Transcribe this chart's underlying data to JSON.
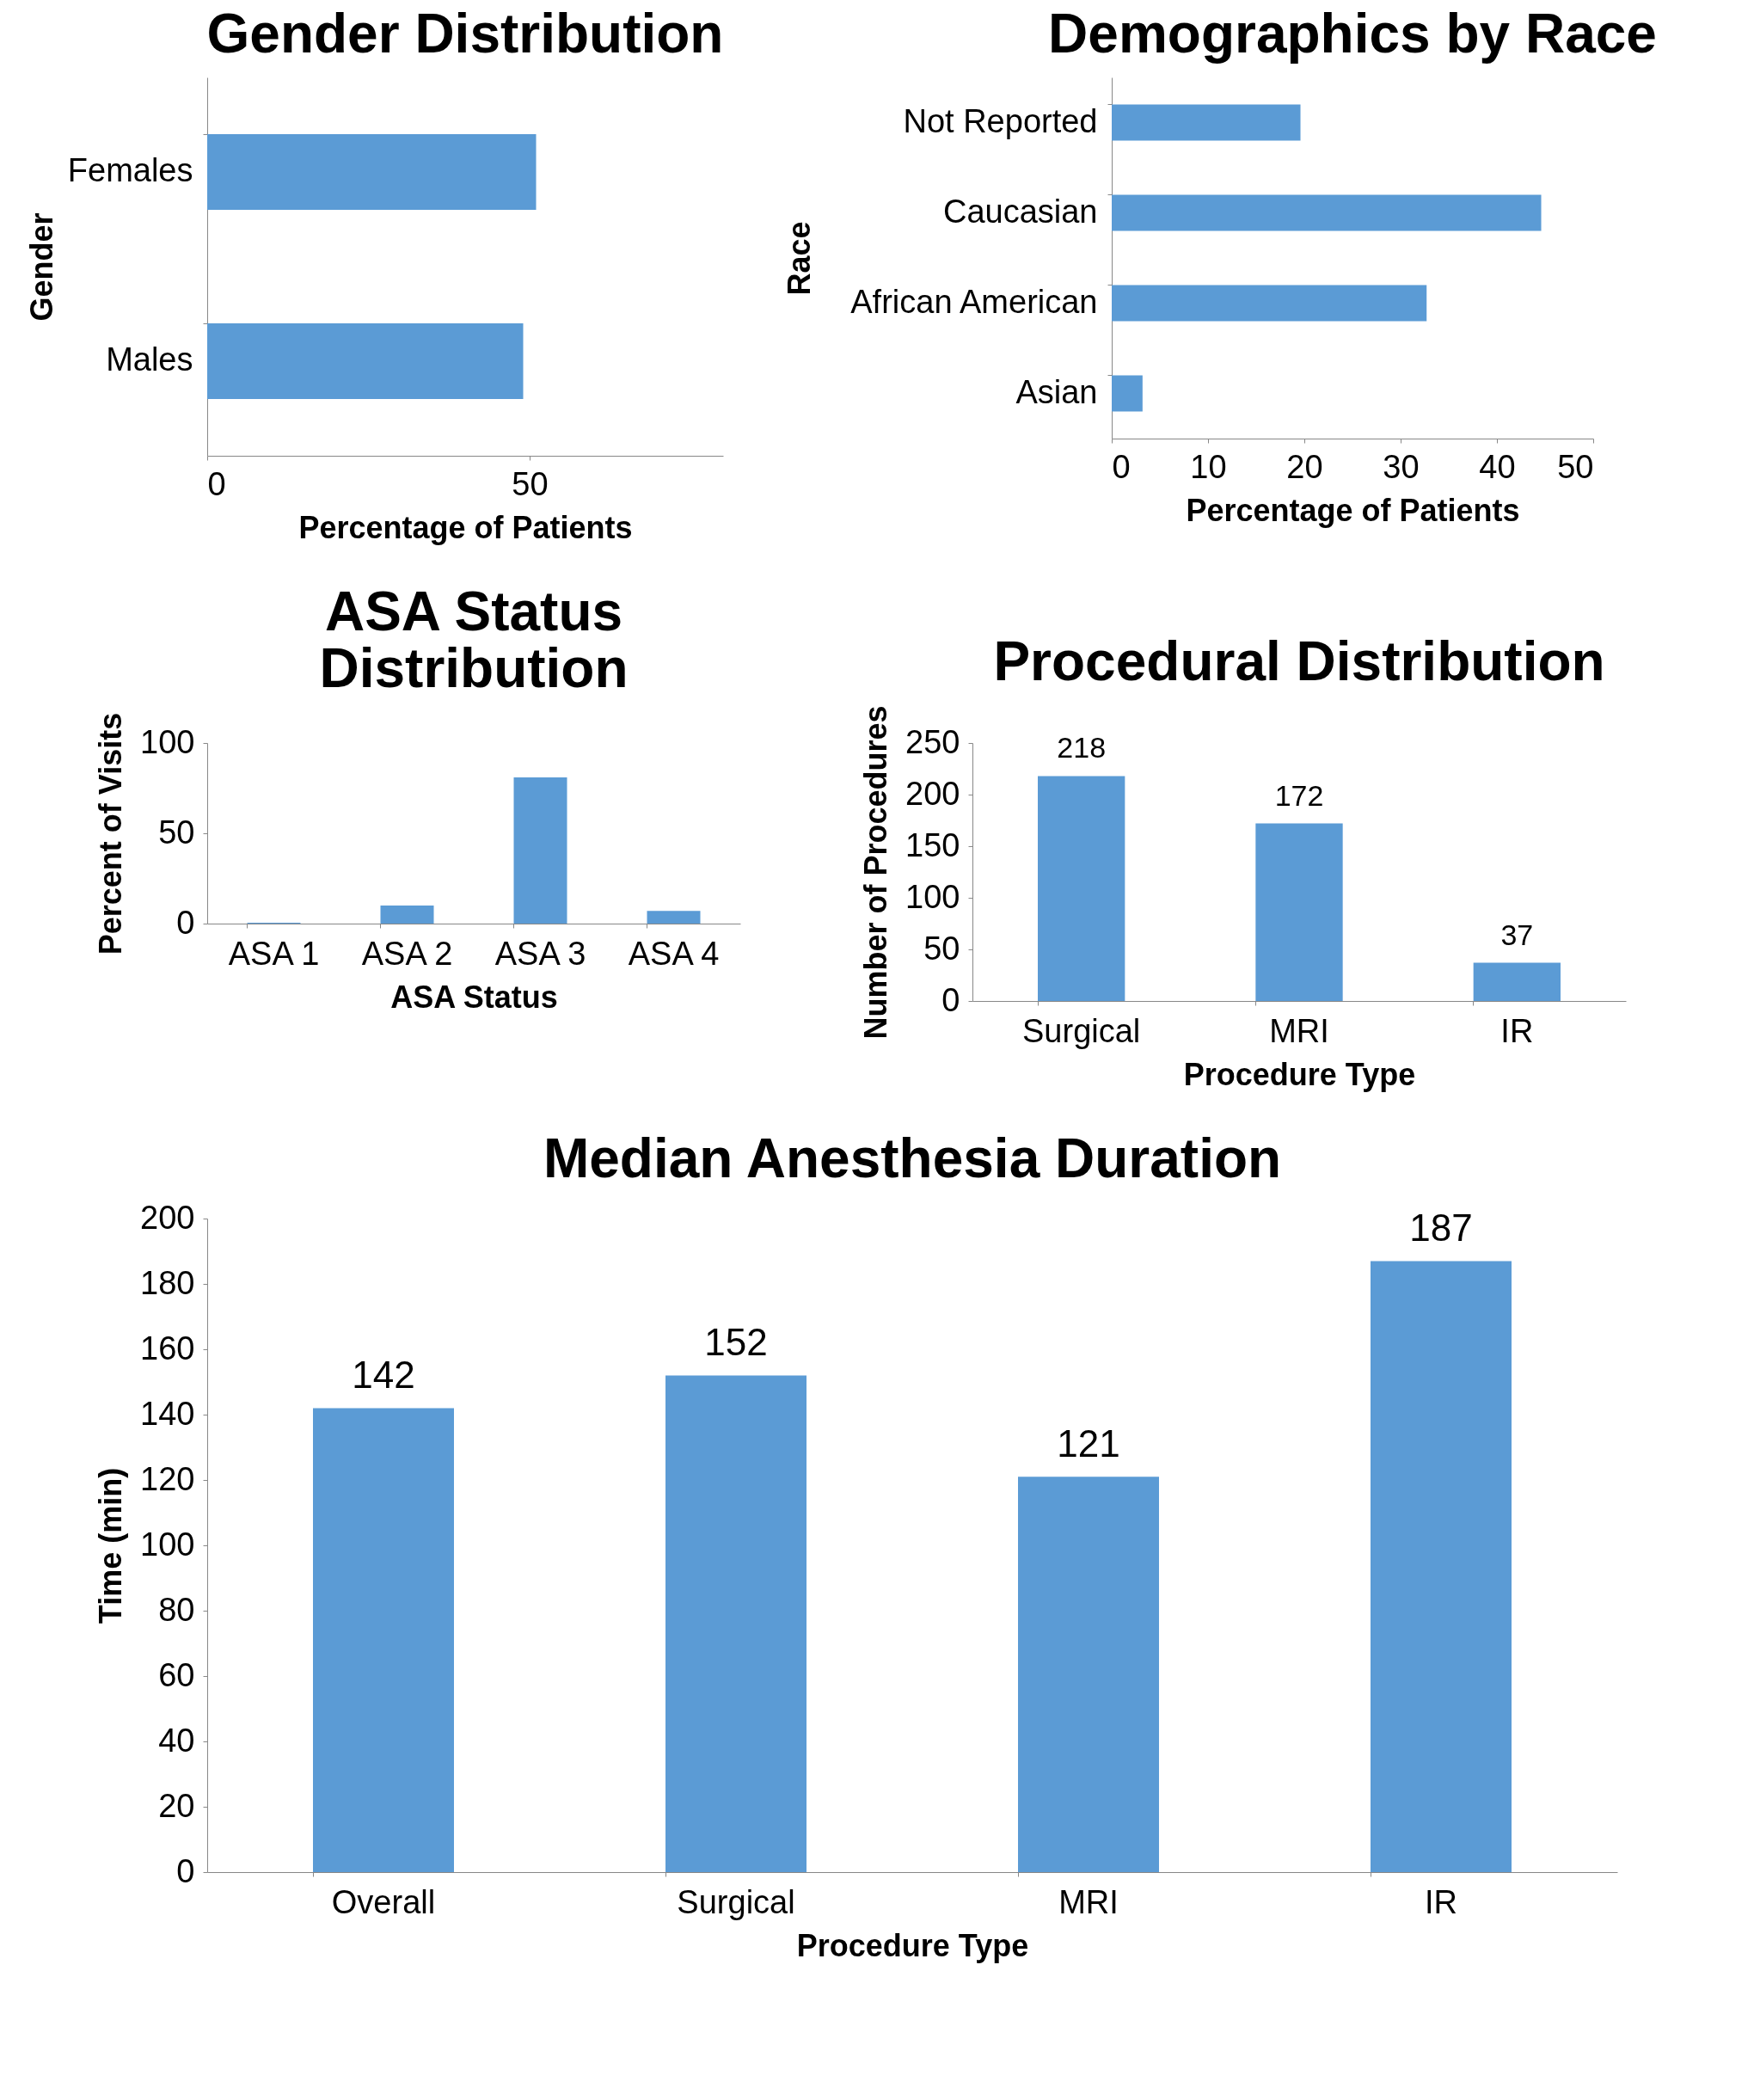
{
  "chart_data": [
    {
      "type": "bar",
      "orientation": "horizontal",
      "title": "Gender Distribution",
      "xlabel": "Percentage of Patients",
      "ylabel": "Gender",
      "categories": [
        "Females",
        "Males"
      ],
      "values": [
        51,
        49
      ],
      "color": "#5b9bd5",
      "xlim": [
        0,
        80
      ],
      "xticks": [
        0,
        50
      ]
    },
    {
      "type": "bar",
      "orientation": "horizontal",
      "title": "Demographics by Race",
      "xlabel": "Percentage of Patients",
      "ylabel": "Race",
      "categories": [
        "Not Reported",
        "Caucasian",
        "African American",
        "Asian"
      ],
      "values": [
        19.6,
        44.6,
        32.7,
        3.2
      ],
      "color": "#5b9bd5",
      "xlim": [
        0,
        50
      ],
      "xticks": [
        0,
        10,
        20,
        30,
        40,
        50
      ]
    },
    {
      "type": "bar",
      "title": "ASA Status Distribution",
      "xlabel": "ASA Status",
      "ylabel": "Percent of Visits",
      "categories": [
        "ASA 1",
        "ASA 2",
        "ASA 3",
        "ASA 4"
      ],
      "values": [
        0.5,
        10,
        81,
        7
      ],
      "color": "#5b9bd5",
      "ylim": [
        0,
        100
      ],
      "yticks": [
        0,
        50,
        100
      ]
    },
    {
      "type": "bar",
      "title": "Procedural Distribution",
      "xlabel": "Procedure Type",
      "ylabel": "Number of Procedures",
      "categories": [
        "Surgical",
        "MRI",
        "IR"
      ],
      "values": [
        218,
        172,
        37
      ],
      "color": "#5b9bd5",
      "ylim": [
        0,
        250
      ],
      "yticks": [
        0,
        50,
        100,
        150,
        200,
        250
      ],
      "data_labels": true
    },
    {
      "type": "bar",
      "title": "Median Anesthesia Duration",
      "xlabel": "Procedure Type",
      "ylabel": "Time (min)",
      "categories": [
        "Overall",
        "Surgical",
        "MRI",
        "IR"
      ],
      "values": [
        142,
        152,
        121,
        187
      ],
      "color": "#5b9bd5",
      "ylim": [
        0,
        200
      ],
      "yticks": [
        0,
        20,
        40,
        60,
        80,
        100,
        120,
        140,
        160,
        180,
        200
      ],
      "data_labels": true
    }
  ]
}
